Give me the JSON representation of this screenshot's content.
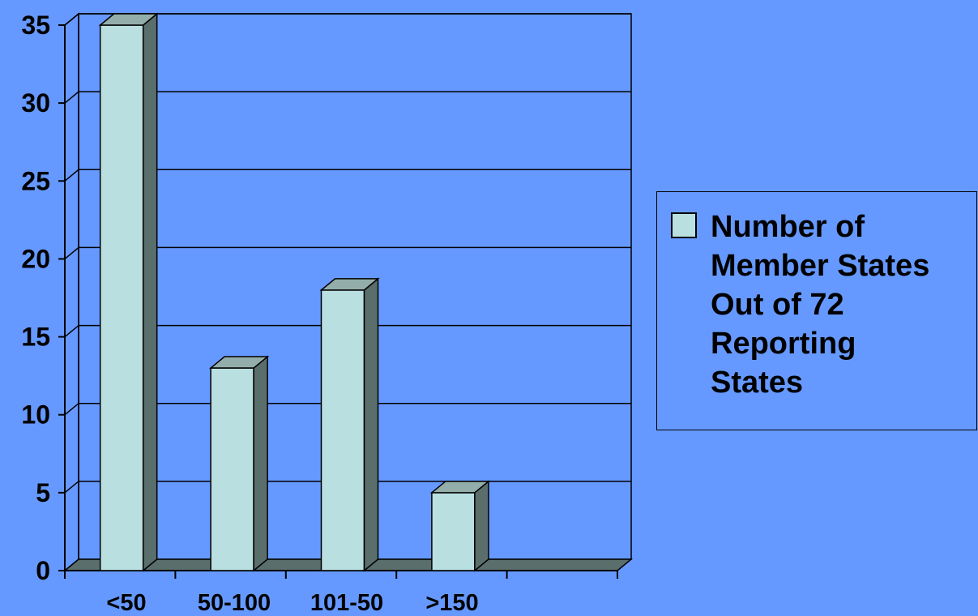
{
  "chart_data": {
    "type": "bar",
    "categories": [
      "<50",
      "50-100",
      "101-50",
      ">150",
      ""
    ],
    "series": [
      {
        "name": "Number of Member States Out of 72 Reporting States",
        "values": [
          35,
          13,
          18,
          5,
          null
        ]
      }
    ],
    "ylim": [
      0,
      35
    ],
    "yticks": [
      0,
      5,
      10,
      15,
      20,
      25,
      30,
      35
    ],
    "grid": true,
    "legend_position": "right",
    "style": "3d-columns"
  },
  "legend": {
    "text": "Number of\nMember States\nOut of 72\nReporting\nStates"
  },
  "colors": {
    "background": "#6699ff",
    "bar_front": "#b9dfe1",
    "bar_side": "#5a6e6c",
    "bar_top": "#93aeaa",
    "floor": "#5a6e6c"
  }
}
